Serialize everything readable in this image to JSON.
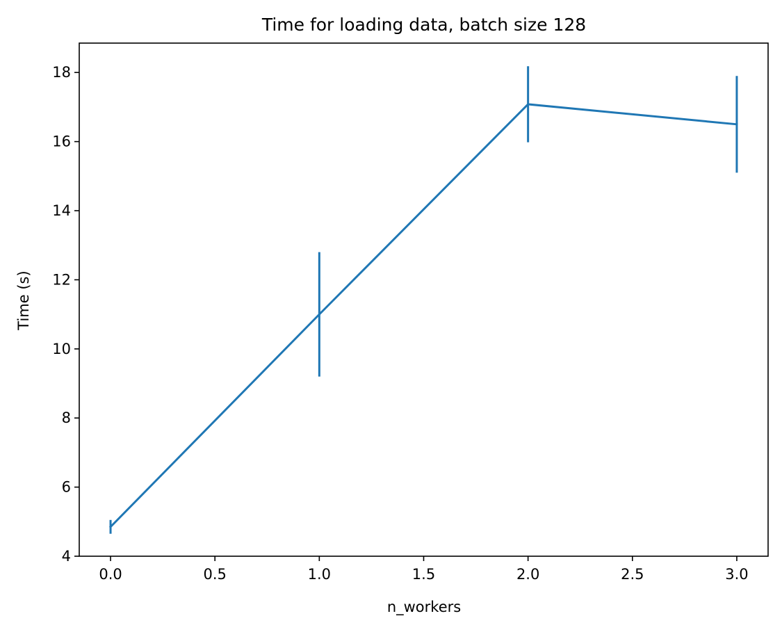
{
  "chart_data": {
    "type": "line",
    "title": "Time for loading data, batch size 128",
    "xlabel": "n_workers",
    "ylabel": "Time (s)",
    "xlim": [
      -0.15,
      3.15
    ],
    "ylim": [
      4.0,
      18.85
    ],
    "x_ticks": [
      0.0,
      0.5,
      1.0,
      1.5,
      2.0,
      2.5,
      3.0
    ],
    "x_tick_labels": [
      "0.0",
      "0.5",
      "1.0",
      "1.5",
      "2.0",
      "2.5",
      "3.0"
    ],
    "y_ticks": [
      4,
      6,
      8,
      10,
      12,
      14,
      16,
      18
    ],
    "y_tick_labels": [
      "4",
      "6",
      "8",
      "10",
      "12",
      "14",
      "16",
      "18"
    ],
    "grid": false,
    "series": [
      {
        "color": "#1f77b4",
        "x": [
          0,
          1,
          2,
          3
        ],
        "y": [
          4.85,
          11.0,
          17.08,
          16.5
        ],
        "error": [
          0.2,
          1.8,
          1.1,
          1.4
        ]
      }
    ]
  }
}
